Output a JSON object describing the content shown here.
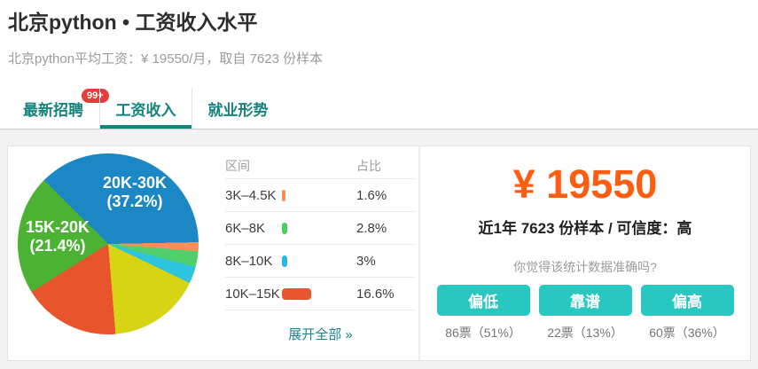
{
  "header": {
    "title": "北京python • 工资收入水平",
    "subtitle": "北京python平均工资：¥ 19550/月，取自 7623 份样本"
  },
  "tabs": {
    "items": [
      {
        "label": "最新招聘",
        "badge": "99+",
        "active": false
      },
      {
        "label": "工资收入",
        "badge": "",
        "active": true
      },
      {
        "label": "就业形势",
        "badge": "",
        "active": false
      }
    ],
    "accent_color": "#15837d",
    "badge_color": "#e53c3c"
  },
  "chart_data": {
    "type": "pie",
    "start_angle_deg": -45,
    "legend_position": "none",
    "slices": [
      {
        "label": "20K-30K",
        "value": 37.2,
        "color": "#1b87c5"
      },
      {
        "label": "3K-4.5K",
        "value": 1.6,
        "color": "#fb8e57"
      },
      {
        "label": "6K-8K",
        "value": 2.8,
        "color": "#50d06c"
      },
      {
        "label": "8K-10K",
        "value": 3.0,
        "color": "#2dc5de"
      },
      {
        "label": "10K-15K",
        "value": 16.6,
        "color": "#d7d513"
      },
      {
        "label": "",
        "value": 17.4,
        "color": "#e8542b"
      },
      {
        "label": "15K-20K",
        "value": 21.4,
        "color": "#4bb233"
      }
    ],
    "pie_labels": [
      {
        "line1": "20K-30K",
        "line2": "(37.2%)"
      },
      {
        "line1": "15K-20K",
        "line2": "(21.4%)"
      }
    ]
  },
  "table": {
    "headers": {
      "range": "区间",
      "share": "占比"
    },
    "rows": [
      {
        "range": "3K–4.5K",
        "share": "1.6%",
        "value": 1.6,
        "bar_color": "#fb8e57"
      },
      {
        "range": "6K–8K",
        "share": "2.8%",
        "value": 2.8,
        "bar_color": "#47d05f"
      },
      {
        "range": "8K–10K",
        "share": "3%",
        "value": 3.0,
        "bar_color": "#2ab6ea"
      },
      {
        "range": "10K–15K",
        "share": "16.6%",
        "value": 16.6,
        "bar_color": "#e8542b"
      }
    ],
    "expand_link": "展开全部 »"
  },
  "summary": {
    "salary": "¥ 19550",
    "salary_color": "#fc5d11",
    "sample_line": "近1年 7623 份样本 / 可信度：高",
    "question": "你觉得该统计数据准确吗?",
    "button_color": "#28c7c2",
    "votes": [
      {
        "label": "偏低",
        "count": "86票（51%）"
      },
      {
        "label": "靠谱",
        "count": "22票（13%）"
      },
      {
        "label": "偏高",
        "count": "60票（36%）"
      }
    ]
  }
}
